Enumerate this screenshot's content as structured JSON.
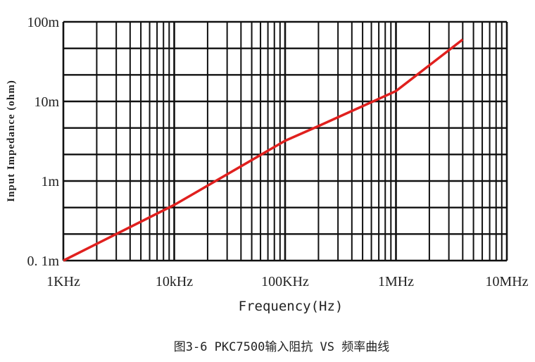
{
  "chart_data": {
    "type": "line",
    "title": "",
    "caption": "图3-6 PKC7500输入阻抗 VS 频率曲线",
    "xlabel": "Frequency(Hz)",
    "ylabel": "Input Impedance (ohm)",
    "x_scale": "log",
    "y_scale": "log",
    "xlim": [
      1000,
      10000000
    ],
    "ylim": [
      0.0001,
      0.1
    ],
    "x_ticks": [
      {
        "value": 1000,
        "label": "1KHz"
      },
      {
        "value": 10000,
        "label": "10kHz"
      },
      {
        "value": 100000,
        "label": "100KHz"
      },
      {
        "value": 1000000,
        "label": "1MHz"
      },
      {
        "value": 10000000,
        "label": "10MHz"
      }
    ],
    "y_ticks": [
      {
        "value": 0.0001,
        "label": "0. 1m"
      },
      {
        "value": 0.001,
        "label": "1m"
      },
      {
        "value": 0.01,
        "label": "10m"
      },
      {
        "value": 0.1,
        "label": "100m"
      }
    ],
    "grid": true,
    "line_color": "#e0201e",
    "series": [
      {
        "x": [
          1000,
          10000,
          100000,
          200000,
          1000000,
          4000000
        ],
        "y": [
          0.0001,
          0.0005,
          0.0032,
          0.0049,
          0.0135,
          0.06
        ]
      }
    ]
  }
}
